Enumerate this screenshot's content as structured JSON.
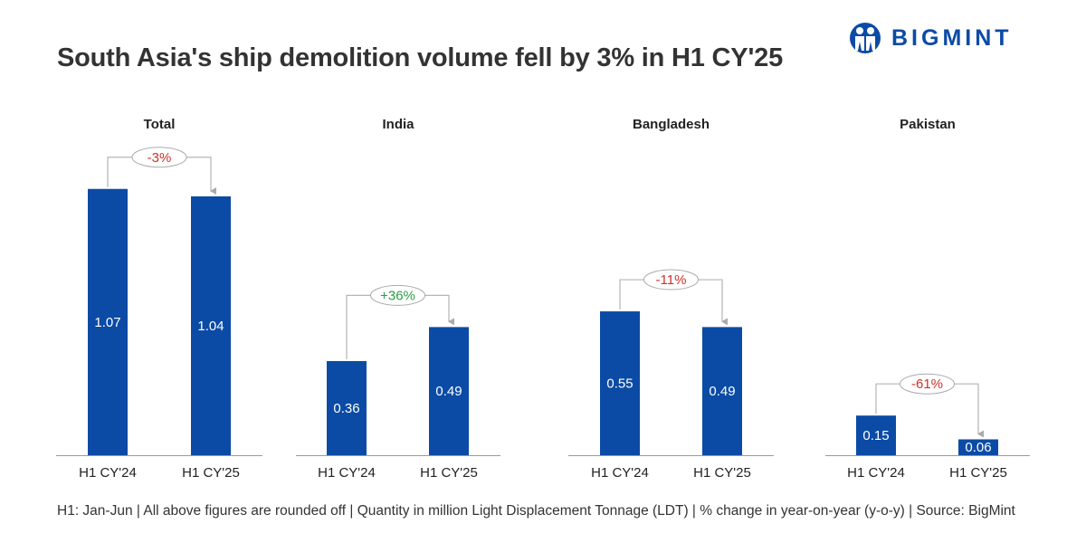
{
  "title": "South Asia's ship demolition volume fell by 3% in H1 CY'25",
  "logo": {
    "text": "BIGMINT"
  },
  "footer": "H1: Jan-Jun | All above figures are rounded off | Quantity in million Light Displacement Tonnage (LDT) | % change in year-on-year (y-o-y) | Source: BigMint",
  "colors": {
    "bar": "#0b4ba5",
    "negative": "#d0302a",
    "positive": "#2a9d46",
    "bracket": "#b5b5b5"
  },
  "chart_data": [
    {
      "type": "bar",
      "title": "Total",
      "categories": [
        "H1 CY'24",
        "H1 CY'25"
      ],
      "values": [
        1.07,
        1.04
      ],
      "change": "-3%",
      "change_sign": "negative"
    },
    {
      "type": "bar",
      "title": "India",
      "categories": [
        "H1 CY'24",
        "H1 CY'25"
      ],
      "values": [
        0.36,
        0.49
      ],
      "change": "+36%",
      "change_sign": "positive"
    },
    {
      "type": "bar",
      "title": "Bangladesh",
      "categories": [
        "H1 CY'24",
        "H1 CY'25"
      ],
      "values": [
        0.55,
        0.49
      ],
      "change": "-11%",
      "change_sign": "negative"
    },
    {
      "type": "bar",
      "title": "Pakistan",
      "categories": [
        "H1 CY'24",
        "H1 CY'25"
      ],
      "values": [
        0.15,
        0.06
      ],
      "change": "-61%",
      "change_sign": "negative"
    }
  ]
}
